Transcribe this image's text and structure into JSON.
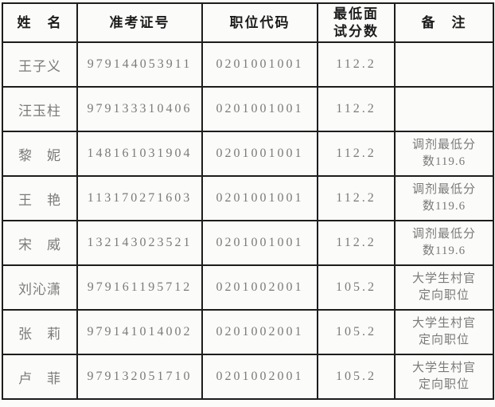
{
  "table": {
    "title_semantic": "interview-score-table",
    "colors": {
      "border": "#1d1d1d",
      "header_text": "#1c1c1c",
      "cell_text": "#7a7a7a",
      "background": "#fbfbf9"
    },
    "columns": [
      {
        "key": "name",
        "label": "姓　名"
      },
      {
        "key": "ticket",
        "label": "准考证号"
      },
      {
        "key": "code",
        "label": "职位代码"
      },
      {
        "key": "score",
        "label": "最低面\n试分数"
      },
      {
        "key": "remark",
        "label": "备　注"
      }
    ],
    "rows": [
      {
        "name": "王子义",
        "ticket": "979144053911",
        "code": "0201001001",
        "score": "112.2",
        "remark": ""
      },
      {
        "name": "汪玉柱",
        "ticket": "979133310406",
        "code": "0201001001",
        "score": "112.2",
        "remark": ""
      },
      {
        "name": "黎　妮",
        "ticket": "148161031904",
        "code": "0201001001",
        "score": "112.2",
        "remark": "调剂最低分\n数119.6"
      },
      {
        "name": "王　艳",
        "ticket": "113170271603",
        "code": "0201001001",
        "score": "112.2",
        "remark": "调剂最低分\n数119.6"
      },
      {
        "name": "宋　威",
        "ticket": "132143023521",
        "code": "0201001001",
        "score": "112.2",
        "remark": "调剂最低分\n数119.6"
      },
      {
        "name": "刘沁潇",
        "ticket": "979161195712",
        "code": "0201002001",
        "score": "105.2",
        "remark": "大学生村官\n定向职位"
      },
      {
        "name": "张　莉",
        "ticket": "979141014002",
        "code": "0201002001",
        "score": "105.2",
        "remark": "大学生村官\n定向职位"
      },
      {
        "name": "卢　菲",
        "ticket": "979132051710",
        "code": "0201002001",
        "score": "105.2",
        "remark": "大学生村官\n定向职位"
      }
    ]
  }
}
